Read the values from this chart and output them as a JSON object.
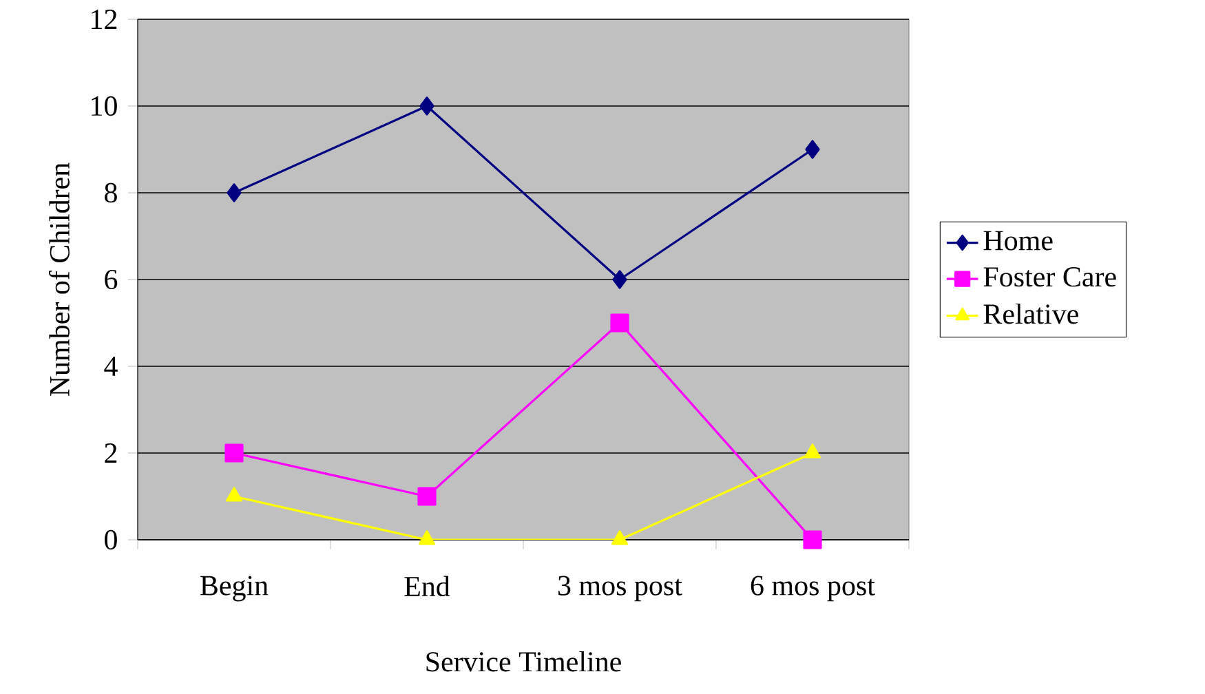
{
  "chart_data": {
    "type": "line",
    "xlabel": "Service Timeline",
    "ylabel": "Number of Children",
    "categories": [
      "Begin",
      "End",
      "3 mos post",
      "6 mos post"
    ],
    "ylim": [
      0,
      12
    ],
    "yticks": [
      0,
      2,
      4,
      6,
      8,
      10,
      12
    ],
    "grid": "y",
    "legend": "right",
    "line_style": "solid",
    "series": [
      {
        "name": "Home",
        "color": "#000080",
        "marker": "diamond",
        "values": [
          8,
          10,
          6,
          9
        ]
      },
      {
        "name": "Foster Care",
        "color": "#ff00ff",
        "marker": "square",
        "values": [
          2,
          1,
          5,
          0
        ]
      },
      {
        "name": "Relative",
        "color": "#ffff00",
        "marker": "triangle",
        "values": [
          1,
          0,
          0,
          2
        ]
      }
    ]
  }
}
